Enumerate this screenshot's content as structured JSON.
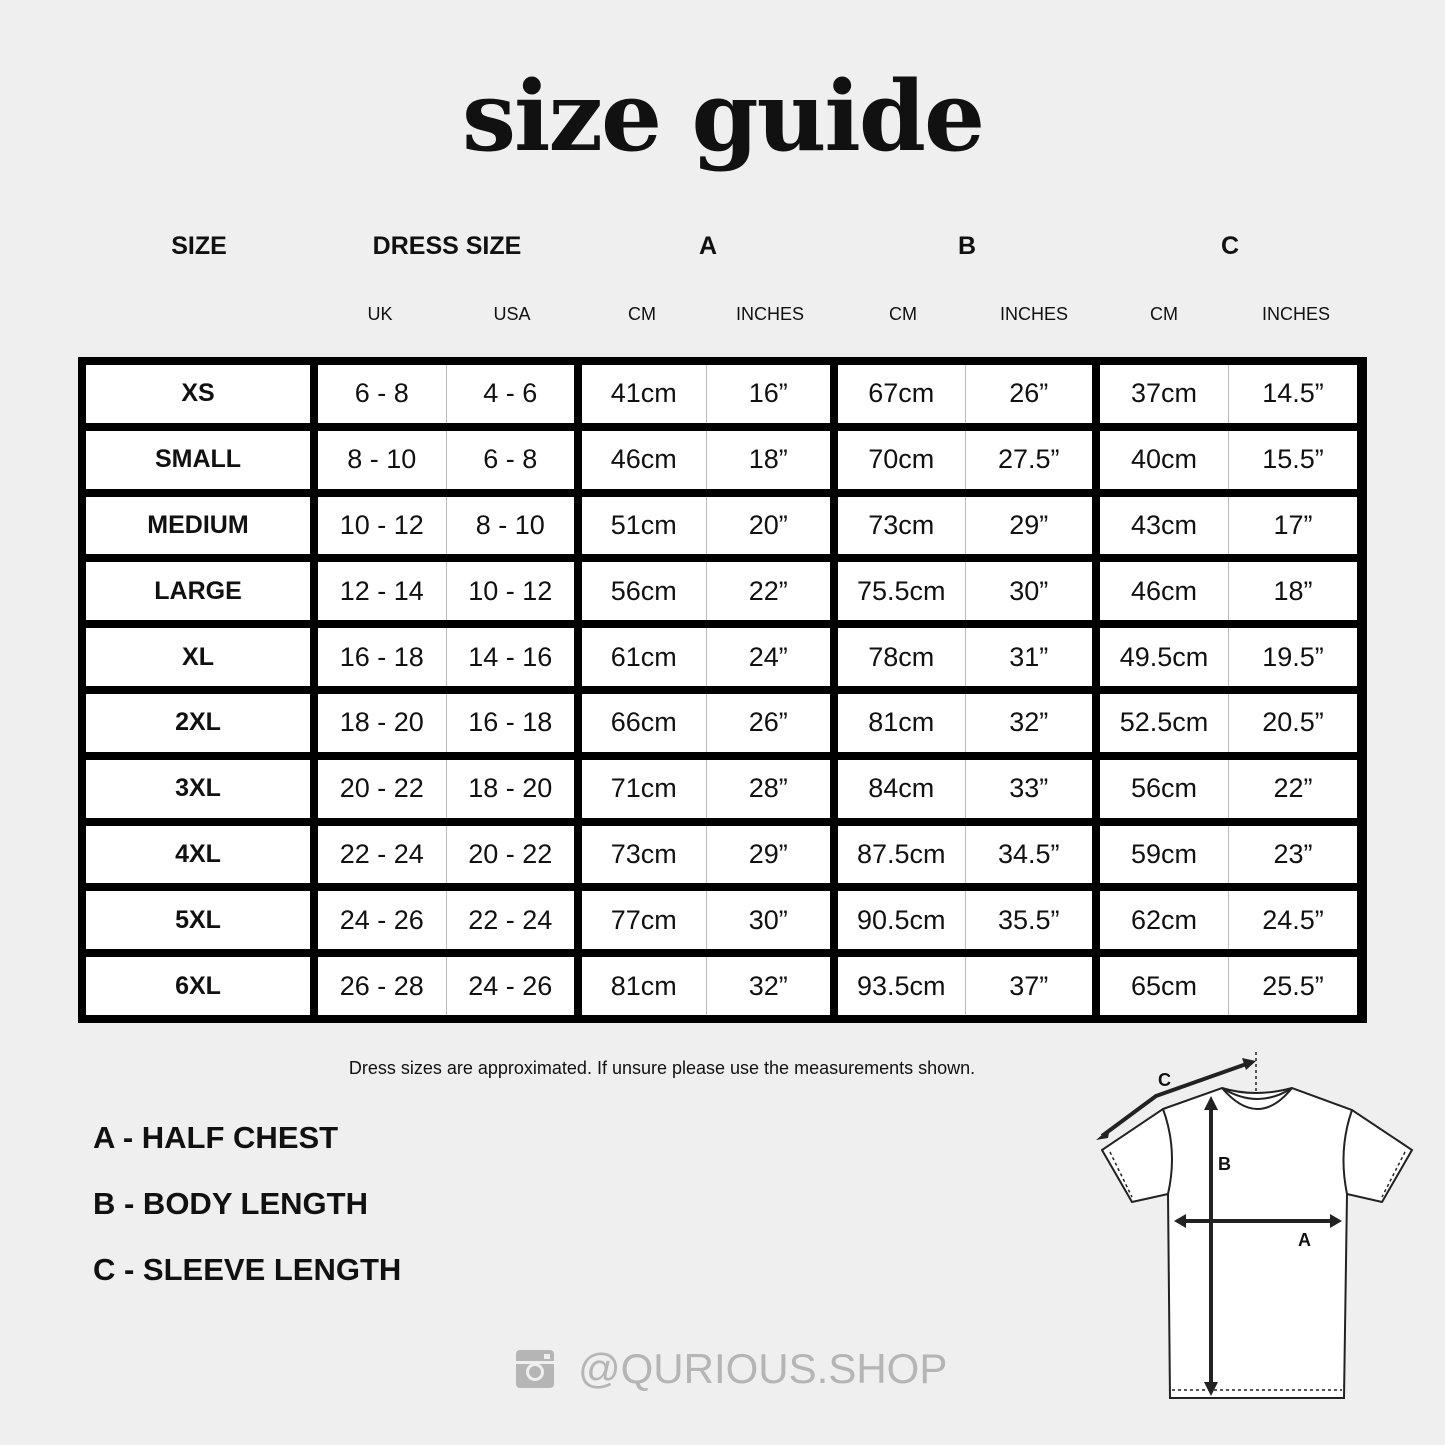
{
  "title": "size guide",
  "headers": {
    "size": "SIZE",
    "dress_size": "DRESS SIZE",
    "a": "A",
    "b": "B",
    "c": "C"
  },
  "subheaders": [
    "UK",
    "USA",
    "CM",
    "INCHES",
    "CM",
    "INCHES",
    "CM",
    "INCHES"
  ],
  "rows": [
    {
      "size": "XS",
      "uk": "6 - 8",
      "usa": "4 - 6",
      "a_cm": "41cm",
      "a_in": "16”",
      "b_cm": "67cm",
      "b_in": "26”",
      "c_cm": "37cm",
      "c_in": "14.5”"
    },
    {
      "size": "SMALL",
      "uk": "8 - 10",
      "usa": "6 - 8",
      "a_cm": "46cm",
      "a_in": "18”",
      "b_cm": "70cm",
      "b_in": "27.5”",
      "c_cm": "40cm",
      "c_in": "15.5”"
    },
    {
      "size": "MEDIUM",
      "uk": "10 - 12",
      "usa": "8 - 10",
      "a_cm": "51cm",
      "a_in": "20”",
      "b_cm": "73cm",
      "b_in": "29”",
      "c_cm": "43cm",
      "c_in": "17”"
    },
    {
      "size": "LARGE",
      "uk": "12 - 14",
      "usa": "10 - 12",
      "a_cm": "56cm",
      "a_in": "22”",
      "b_cm": "75.5cm",
      "b_in": "30”",
      "c_cm": "46cm",
      "c_in": "18”"
    },
    {
      "size": "XL",
      "uk": "16 - 18",
      "usa": "14 - 16",
      "a_cm": "61cm",
      "a_in": "24”",
      "b_cm": "78cm",
      "b_in": "31”",
      "c_cm": "49.5cm",
      "c_in": "19.5”"
    },
    {
      "size": "2XL",
      "uk": "18 - 20",
      "usa": "16 - 18",
      "a_cm": "66cm",
      "a_in": "26”",
      "b_cm": "81cm",
      "b_in": "32”",
      "c_cm": "52.5cm",
      "c_in": "20.5”"
    },
    {
      "size": "3XL",
      "uk": "20 - 22",
      "usa": "18 - 20",
      "a_cm": "71cm",
      "a_in": "28”",
      "b_cm": "84cm",
      "b_in": "33”",
      "c_cm": "56cm",
      "c_in": "22”"
    },
    {
      "size": "4XL",
      "uk": "22 - 24",
      "usa": "20 - 22",
      "a_cm": "73cm",
      "a_in": "29”",
      "b_cm": "87.5cm",
      "b_in": "34.5”",
      "c_cm": "59cm",
      "c_in": "23”"
    },
    {
      "size": "5XL",
      "uk": "24 - 26",
      "usa": "22 - 24",
      "a_cm": "77cm",
      "a_in": "30”",
      "b_cm": "90.5cm",
      "b_in": "35.5”",
      "c_cm": "62cm",
      "c_in": "24.5”"
    },
    {
      "size": "6XL",
      "uk": "26 - 28",
      "usa": "24 - 26",
      "a_cm": "81cm",
      "a_in": "32”",
      "b_cm": "93.5cm",
      "b_in": "37”",
      "c_cm": "65cm",
      "c_in": "25.5”"
    }
  ],
  "note": "Dress sizes are approximated. If unsure please use the measurements shown.",
  "legend": [
    "A - HALF CHEST",
    "B - BODY LENGTH",
    "C - SLEEVE LENGTH"
  ],
  "diagram_labels": {
    "a": "A",
    "b": "B",
    "c": "C"
  },
  "social": {
    "icon": "instagram-icon",
    "handle": "@QURIOUS.SHOP"
  },
  "colors": {
    "background": "#efefef",
    "grid": "#000000",
    "handle": "#b5b5b5"
  }
}
